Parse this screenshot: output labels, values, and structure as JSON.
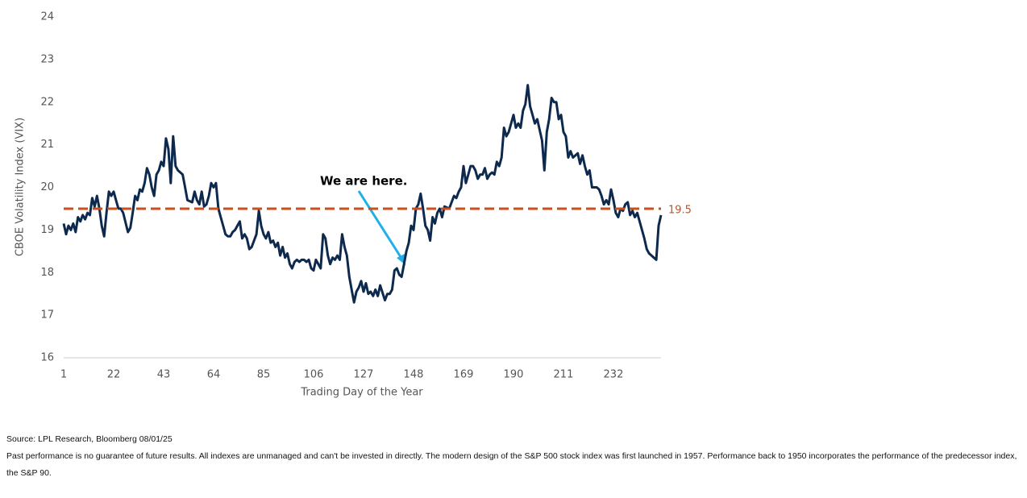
{
  "chart_data": {
    "type": "line",
    "ylabel": "CBOE Volatility Index (VIX)",
    "xlabel": "Trading Day of the Year",
    "color": "#0d2a4e",
    "x": [
      1,
      2,
      3,
      4,
      5,
      6,
      7,
      8,
      9,
      10,
      11,
      12,
      13,
      14,
      15,
      16,
      17,
      18,
      19,
      20,
      21,
      22,
      23,
      24,
      25,
      26,
      28,
      29,
      30,
      31,
      32,
      33,
      34,
      35,
      36,
      37,
      38,
      39,
      40,
      41,
      42,
      43,
      44,
      45,
      46,
      47,
      48,
      49,
      50,
      51,
      52,
      53,
      55,
      56,
      57,
      58,
      59,
      60,
      61,
      62,
      63,
      64,
      65,
      66,
      67,
      68,
      69,
      70,
      71,
      72,
      73,
      74,
      75,
      76,
      77,
      78,
      79,
      80,
      82,
      83,
      84,
      85,
      86,
      87,
      88,
      89,
      90,
      91,
      92,
      93,
      94,
      95,
      96,
      97,
      98,
      99,
      100,
      101,
      102,
      103,
      104,
      105,
      106,
      107,
      109,
      110,
      111,
      112,
      113,
      114,
      115,
      116,
      117,
      118,
      119,
      120,
      121,
      122,
      123,
      124,
      125,
      126,
      127,
      128,
      129,
      130,
      131,
      132,
      133,
      134,
      136,
      137,
      138,
      139,
      140,
      141,
      142,
      143,
      144,
      145,
      146,
      147,
      148,
      149,
      150,
      151,
      152,
      153,
      154,
      155,
      156,
      157,
      158,
      159,
      160,
      161,
      163,
      164,
      165,
      166,
      167,
      168,
      169,
      170,
      171,
      172,
      173,
      174,
      175,
      176,
      177,
      178,
      179,
      180,
      181,
      182,
      183,
      184,
      185,
      186,
      187,
      188,
      190,
      191,
      192,
      193,
      194,
      195,
      196,
      197,
      198,
      199,
      200,
      201,
      202,
      203,
      204,
      205,
      206,
      207,
      208,
      209,
      210,
      211,
      212,
      213,
      214,
      215,
      217,
      218,
      219,
      220,
      221,
      222,
      223,
      224,
      225,
      226,
      227,
      228,
      229,
      230,
      231,
      232,
      233,
      234,
      235,
      236,
      237,
      238,
      239,
      240,
      241,
      242,
      244,
      245,
      246,
      247,
      248,
      249,
      250,
      251,
      252
    ],
    "values": [
      19.15,
      18.9,
      19.1,
      19.0,
      19.15,
      18.95,
      19.3,
      19.2,
      19.35,
      19.25,
      19.4,
      19.35,
      19.75,
      19.55,
      19.8,
      19.5,
      19.1,
      18.85,
      19.4,
      19.9,
      19.8,
      19.9,
      19.7,
      19.5,
      19.5,
      19.4,
      18.95,
      19.05,
      19.4,
      19.8,
      19.7,
      19.95,
      19.9,
      20.1,
      20.45,
      20.3,
      20.0,
      19.8,
      20.3,
      20.4,
      20.6,
      20.5,
      21.15,
      20.9,
      20.1,
      21.2,
      20.5,
      20.4,
      20.35,
      20.3,
      20.0,
      19.7,
      19.65,
      19.9,
      19.7,
      19.6,
      19.9,
      19.55,
      19.6,
      19.8,
      20.1,
      20.0,
      20.1,
      19.5,
      19.3,
      19.1,
      18.9,
      18.85,
      18.85,
      18.95,
      19.0,
      19.1,
      19.2,
      18.8,
      18.9,
      18.8,
      18.55,
      18.6,
      18.9,
      19.45,
      19.1,
      18.9,
      18.8,
      18.95,
      18.7,
      18.75,
      18.6,
      18.7,
      18.4,
      18.6,
      18.35,
      18.45,
      18.2,
      18.1,
      18.25,
      18.3,
      18.25,
      18.3,
      18.3,
      18.25,
      18.3,
      18.1,
      18.05,
      18.3,
      18.1,
      18.9,
      18.8,
      18.4,
      18.2,
      18.35,
      18.3,
      18.4,
      18.3,
      18.9,
      18.6,
      18.4,
      17.9,
      17.6,
      17.3,
      17.55,
      17.65,
      17.8,
      17.55,
      17.75,
      17.5,
      17.55,
      17.45,
      17.6,
      17.45,
      17.7,
      17.35,
      17.5,
      17.5,
      17.6,
      18.05,
      18.1,
      17.95,
      17.9,
      18.2,
      18.5,
      18.7,
      19.1,
      19.0,
      19.5,
      19.6,
      19.85,
      19.5,
      19.1,
      19.0,
      18.75,
      19.3,
      19.15,
      19.4,
      19.5,
      19.3,
      19.55,
      19.5,
      19.65,
      19.8,
      19.75,
      19.9,
      20.0,
      20.5,
      20.1,
      20.3,
      20.5,
      20.5,
      20.4,
      20.2,
      20.3,
      20.3,
      20.45,
      20.2,
      20.3,
      20.35,
      20.3,
      20.6,
      20.5,
      20.7,
      21.4,
      21.2,
      21.3,
      21.7,
      21.4,
      21.5,
      21.4,
      21.8,
      21.95,
      22.4,
      21.9,
      21.7,
      21.5,
      21.6,
      21.35,
      21.1,
      20.4,
      21.3,
      21.6,
      22.1,
      22.0,
      22.0,
      21.6,
      21.7,
      21.3,
      21.2,
      20.7,
      20.85,
      20.7,
      20.8,
      20.55,
      20.75,
      20.5,
      20.3,
      20.4,
      20.0,
      20.0,
      20.0,
      19.95,
      19.8,
      19.6,
      19.7,
      19.6,
      19.95,
      19.7,
      19.4,
      19.3,
      19.5,
      19.45,
      19.6,
      19.65,
      19.35,
      19.45,
      19.3,
      19.4,
      19.0,
      18.8,
      18.55,
      18.45,
      18.4,
      18.35,
      18.3,
      19.1,
      19.35
    ],
    "xlim": [
      1,
      252
    ],
    "xticks": [
      1,
      22,
      43,
      64,
      85,
      106,
      127,
      148,
      169,
      190,
      211,
      232
    ],
    "ylim": [
      16,
      24
    ],
    "yticks": [
      16,
      17,
      18,
      19,
      20,
      21,
      22,
      23,
      24
    ],
    "reference_line": {
      "value": 19.5,
      "color": "#c9501c"
    },
    "annotation": "We are here.",
    "source": "Source: LPL Research, Bloomberg 08/01/25",
    "disclaimer": "Past performance is no guarantee of future results. All indexes are unmanaged and can't be invested in directly. The modern design of the S&P 500 stock index was first launched in 1957. Performance back to 1950 incorporates the performance of the predecessor index, the S&P 90."
  }
}
